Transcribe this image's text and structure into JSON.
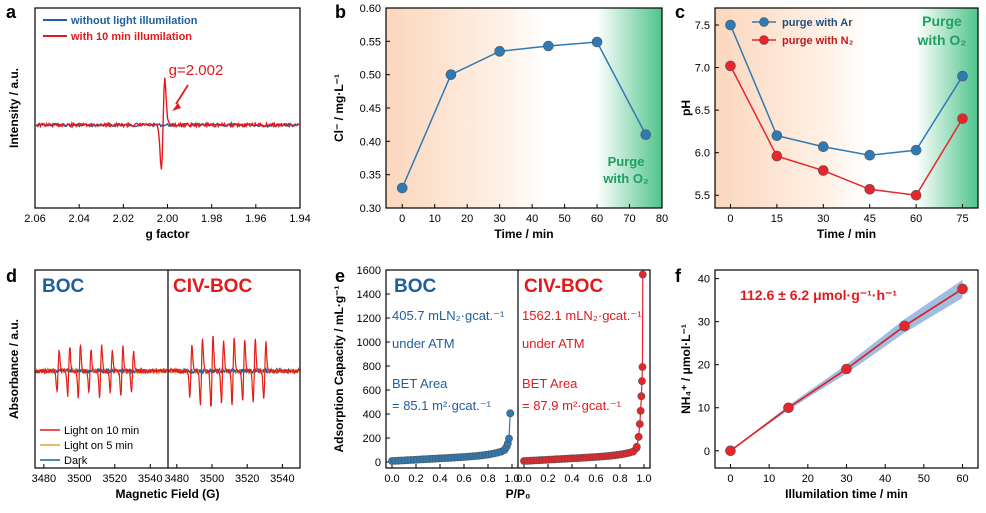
{
  "colors": {
    "blue": "#1f5fa0",
    "red": "#e31a1c",
    "orange": "#f0a030",
    "green": "#1fa060",
    "dot_blue": "#2e7ab5",
    "dot_red": "#e8252a"
  },
  "panels": {
    "a": {
      "label": "a",
      "ylabel": "Intensity / a.u.",
      "xlabel": "g factor",
      "legend": [
        "without light illumilation",
        "with 10 min illumilation"
      ],
      "annotation": "g=2.002"
    },
    "b": {
      "label": "b",
      "ylabel": "Cl⁻ / mg·L⁻¹",
      "xlabel": "Time / min",
      "purge_label": [
        "Purge",
        "with O₂"
      ]
    },
    "c": {
      "label": "c",
      "ylabel": "pH",
      "xlabel": "Time / min",
      "legend": [
        "purge with Ar",
        "purge with N₂"
      ],
      "purge_label": [
        "Purge",
        "with O₂"
      ]
    },
    "d": {
      "label": "d",
      "ylabel": "Absorbance / a.u.",
      "xlabel": "Magnetic Field (G)",
      "title_left": "BOC",
      "title_right": "CIV-BOC",
      "legend": [
        "Light on 10 min",
        "Light on 5 min",
        "Dark"
      ]
    },
    "e": {
      "label": "e",
      "ylabel": "Adsorption Capacity / mL·g⁻¹",
      "xlabel": "P/P₀",
      "title_left": "BOC",
      "title_right": "CIV-BOC",
      "left_text": [
        "405.7 mLN₂·gcat.⁻¹",
        "under ATM",
        "BET Area",
        "= 85.1 m²·gcat.⁻¹"
      ],
      "right_text": [
        "1562.1 mLN₂·gcat.⁻¹",
        "under ATM",
        "BET Area",
        "= 87.9 m²·gcat.⁻¹"
      ]
    },
    "f": {
      "label": "f",
      "ylabel": "NH₄⁺ / μmol·L⁻¹",
      "xlabel": "Illumilation time / min",
      "annotation": "112.6 ± 6.2 μmol·g⁻¹·h⁻¹"
    }
  },
  "chart_data": [
    {
      "panel": "a",
      "type": "line",
      "xlim": [
        2.06,
        1.94
      ],
      "xticks": [
        "2.06",
        "2.04",
        "2.02",
        "2.00",
        "1.98",
        "1.96",
        "1.94"
      ],
      "series": [
        {
          "name": "without light illumilation",
          "peak_g": 2.002,
          "amplitude": 0.1
        },
        {
          "name": "with 10 min illumilation",
          "peak_g": 2.002,
          "amplitude": 1.0
        }
      ]
    },
    {
      "panel": "b",
      "type": "line",
      "x": [
        0,
        15,
        30,
        45,
        60,
        75
      ],
      "y": [
        0.33,
        0.5,
        0.535,
        0.543,
        0.549,
        0.41
      ],
      "xlim": [
        -5,
        80
      ],
      "ylim": [
        0.3,
        0.6
      ],
      "xticks": [
        0,
        10,
        20,
        30,
        40,
        50,
        60,
        70,
        80
      ],
      "yticks": [
        "0.30",
        "0.35",
        "0.40",
        "0.45",
        "0.50",
        "0.55",
        "0.60"
      ]
    },
    {
      "panel": "c",
      "type": "line",
      "x": [
        0,
        15,
        30,
        45,
        60,
        75
      ],
      "xlim": [
        -5,
        80
      ],
      "ylim": [
        5.35,
        7.7
      ],
      "xticks": [
        0,
        15,
        30,
        45,
        60,
        75
      ],
      "yticks": [
        "5.5",
        "6.0",
        "6.5",
        "7.0",
        "7.5"
      ],
      "series": [
        {
          "name": "purge with Ar",
          "values": [
            7.5,
            6.2,
            6.07,
            5.97,
            6.03,
            6.9
          ]
        },
        {
          "name": "purge with N₂",
          "values": [
            7.02,
            5.96,
            5.79,
            5.57,
            5.5,
            6.4
          ]
        }
      ]
    },
    {
      "panel": "d",
      "type": "line",
      "xlim": [
        3475,
        3550
      ],
      "xticks": [
        "3480",
        "3500",
        "3520",
        "3540"
      ],
      "lines_G": [
        3488,
        3494,
        3500,
        3506,
        3512,
        3518,
        3524,
        3530
      ],
      "series": [
        {
          "name": "Light on 10 min"
        },
        {
          "name": "Light on 5 min"
        },
        {
          "name": "Dark"
        }
      ]
    },
    {
      "panel": "e",
      "type": "scatter",
      "xlim": [
        -0.05,
        1.05
      ],
      "ylim": [
        -50,
        1600
      ],
      "yticks": [
        0,
        200,
        400,
        600,
        800,
        1000,
        1200,
        1400,
        1600
      ],
      "xticks": [
        "0.0",
        "0.2",
        "0.4",
        "0.6",
        "0.8",
        "1.0"
      ],
      "series": [
        {
          "name": "BOC",
          "max": 405.7
        },
        {
          "name": "CIV-BOC",
          "max": 1562.1
        }
      ]
    },
    {
      "panel": "f",
      "type": "line",
      "x": [
        0,
        15,
        30,
        45,
        60
      ],
      "y": [
        0,
        10,
        19,
        29,
        37.6
      ],
      "xlim": [
        -4,
        64
      ],
      "ylim": [
        -4,
        42
      ],
      "xticks": [
        0,
        10,
        20,
        30,
        40,
        50,
        60
      ],
      "yticks": [
        0,
        10,
        20,
        30,
        40
      ]
    }
  ]
}
